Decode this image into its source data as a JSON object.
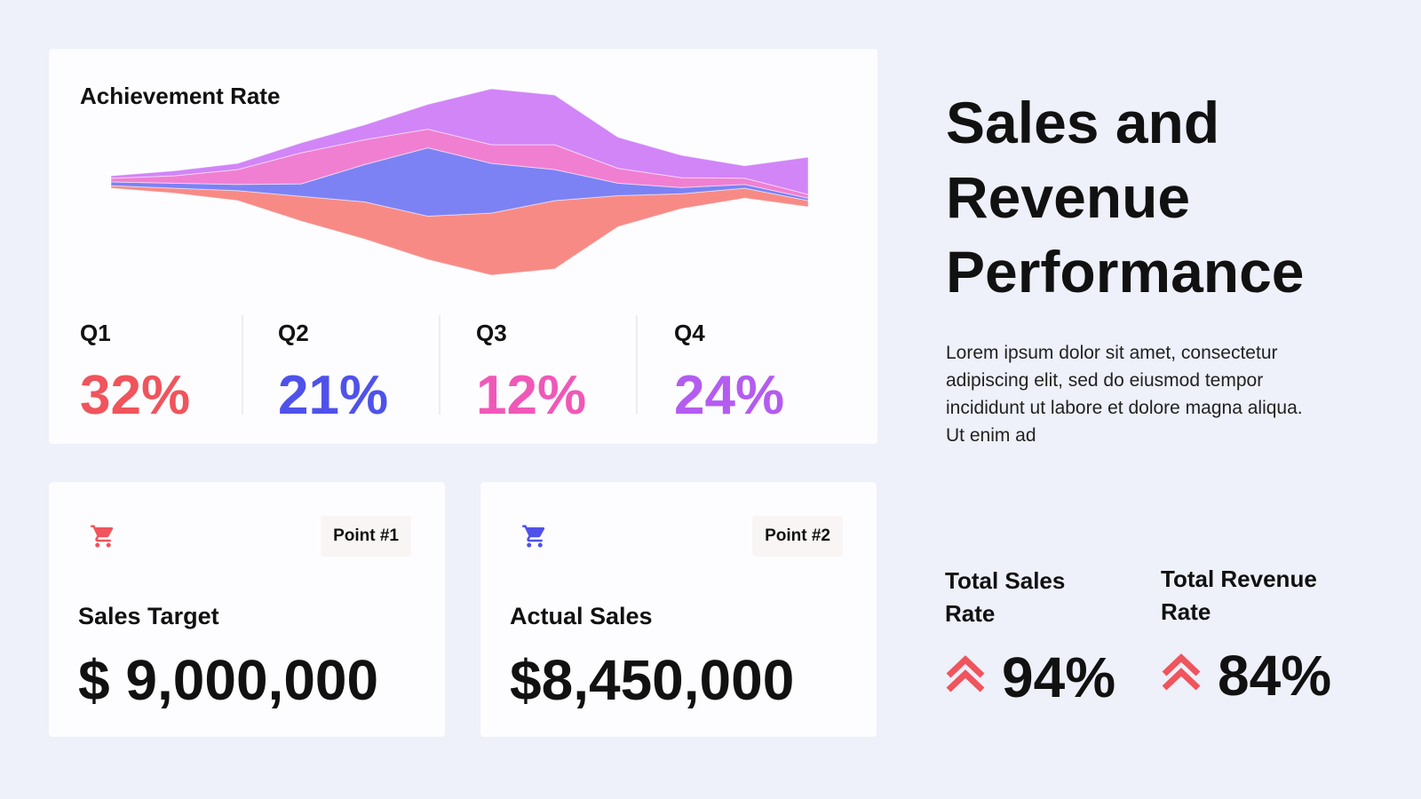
{
  "chart_data": {
    "type": "stream",
    "title": "Achievement Rate",
    "series": [
      {
        "color": "#f88a86",
        "values": [
          2,
          4,
          8,
          20,
          30,
          35,
          50,
          55,
          25,
          12,
          8,
          5
        ]
      },
      {
        "color": "#7c82f4",
        "values": [
          3,
          4,
          5,
          10,
          30,
          55,
          40,
          25,
          10,
          5,
          3,
          2
        ]
      },
      {
        "color": "#f07fd2",
        "values": [
          3,
          6,
          12,
          25,
          20,
          15,
          15,
          20,
          12,
          8,
          5,
          3
        ]
      },
      {
        "color": "#d185f7",
        "values": [
          2,
          4,
          5,
          8,
          12,
          20,
          45,
          40,
          25,
          18,
          10,
          30
        ]
      }
    ]
  },
  "quarters": [
    {
      "label": "Q1",
      "value": "32%",
      "color": "#f0545c"
    },
    {
      "label": "Q2",
      "value": "21%",
      "color": "#4f52ea"
    },
    {
      "label": "Q3",
      "value": "12%",
      "color": "#f058b8"
    },
    {
      "label": "Q4",
      "value": "24%",
      "color": "#b45cf0"
    }
  ],
  "header": {
    "title": "Sales and Revenue Performance",
    "body": "Lorem ipsum dolor sit amet, consectetur adipiscing elit, sed do eiusmod tempor incididunt ut labore et dolore magna aliqua. Ut enim ad"
  },
  "cards": [
    {
      "badge": "Point #1",
      "label": "Sales Target",
      "value": "$ 9,000,000",
      "icon_color": "#f0545c"
    },
    {
      "badge": "Point #2",
      "label": "Actual Sales",
      "value": "$8,450,000",
      "icon_color": "#4f52ea"
    }
  ],
  "rates": [
    {
      "label": "Total Sales Rate",
      "value": "94%"
    },
    {
      "label": "Total Revenue Rate",
      "value": "84%"
    }
  ]
}
